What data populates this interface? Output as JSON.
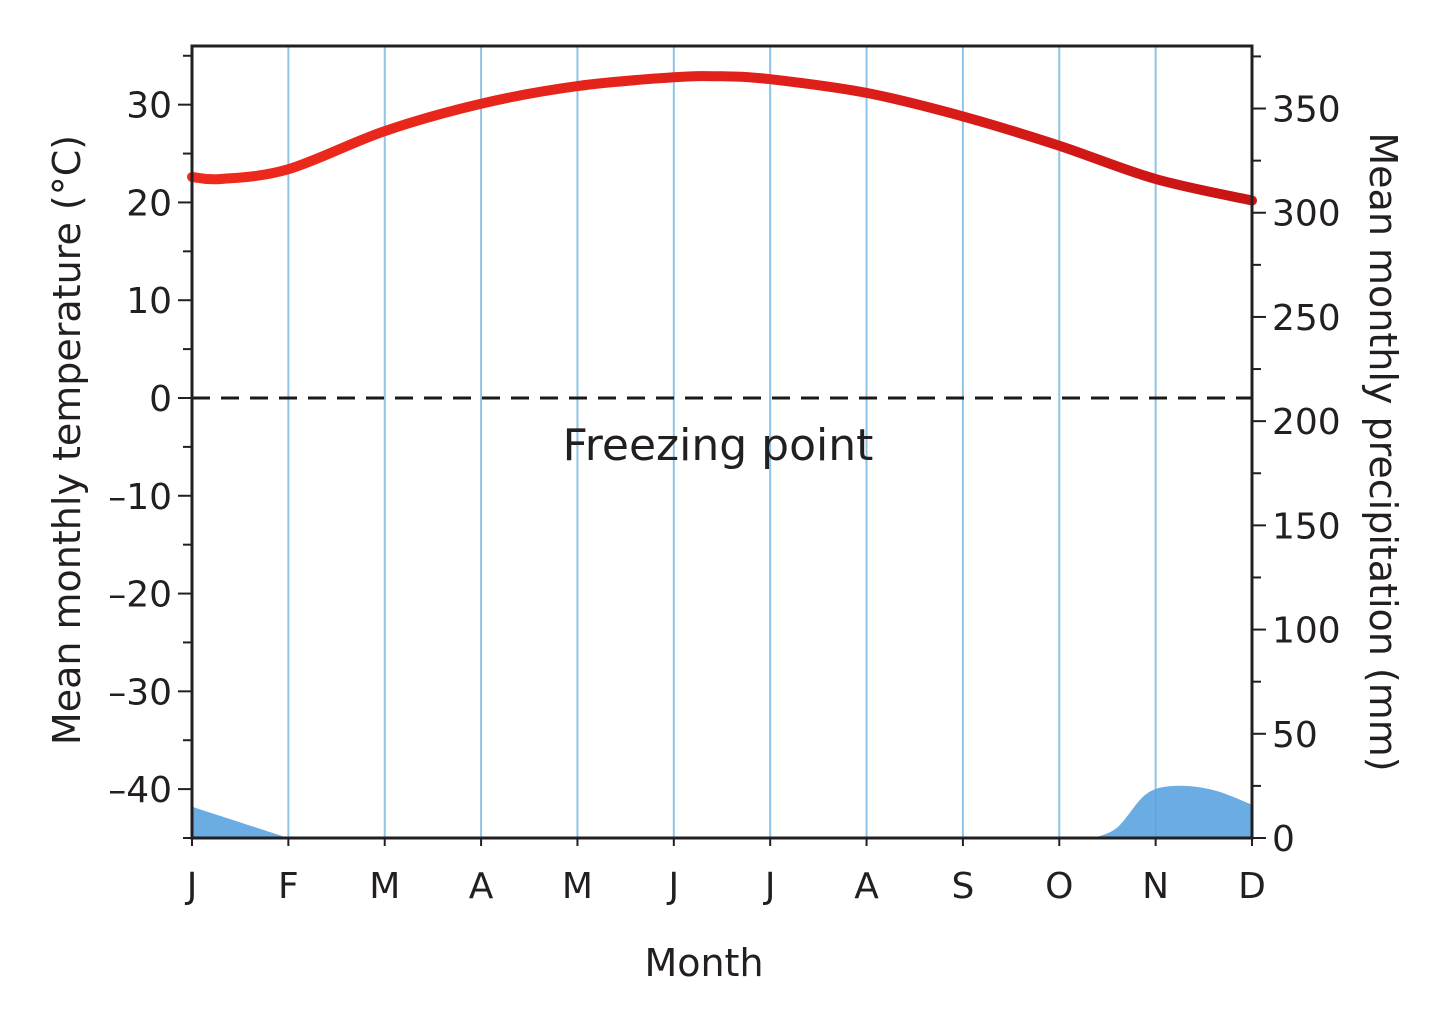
{
  "chart_data": {
    "type": "line",
    "xlabel": "Month",
    "ylabel_left": "Mean monthly temperature (°C)",
    "ylabel_right": "Mean monthly precipitation (mm)",
    "categories": [
      "J",
      "F",
      "M",
      "A",
      "M",
      "J",
      "J",
      "A",
      "S",
      "O",
      "N",
      "D"
    ],
    "ylim_left": [
      -45,
      36
    ],
    "yticks_left": [
      30,
      20,
      10,
      0,
      -10,
      -20,
      -30,
      -40
    ],
    "yticks_left_labels": [
      "30",
      "20",
      "10",
      "0",
      "–10",
      "–20",
      "–30",
      "–40"
    ],
    "ylim_right": [
      0,
      380
    ],
    "yticks_right": [
      350,
      300,
      250,
      200,
      150,
      100,
      50,
      0
    ],
    "grid": "vertical",
    "annotation": {
      "text": "Freezing point",
      "value": 0
    },
    "series": [
      {
        "kind": "temperature-line",
        "axis": "left",
        "color": "#e32119",
        "x": [
          0,
          0.3,
          1,
          2,
          3,
          4,
          5,
          5.5,
          6,
          7,
          8,
          9,
          10,
          11
        ],
        "values": [
          22.6,
          22.4,
          23.4,
          27.3,
          30.1,
          31.9,
          32.8,
          32.9,
          32.6,
          31.2,
          28.8,
          25.8,
          22.4,
          20.2
        ]
      },
      {
        "kind": "precipitation-area",
        "axis": "right",
        "color": "#5ba4e0",
        "x": [
          0,
          1,
          9.35,
          9.6,
          9.9,
          10.2,
          10.6,
          11
        ],
        "values": [
          15,
          0,
          0,
          5,
          21,
          25,
          23,
          16
        ]
      }
    ]
  }
}
